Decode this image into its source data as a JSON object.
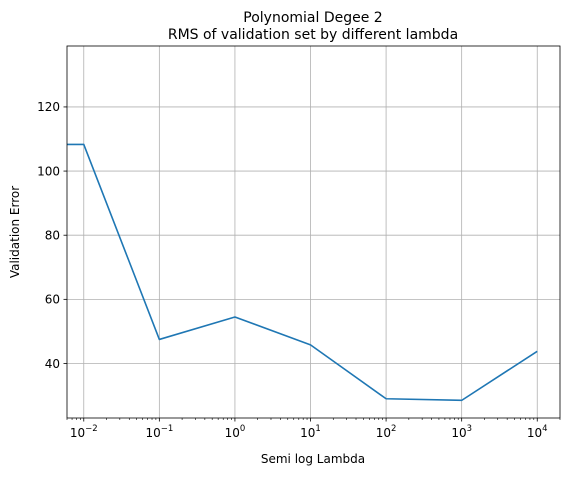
{
  "chart_data": {
    "type": "line",
    "title": "Polynomial Degee 2",
    "subtitle": "RMS of validation set by different lambda",
    "xlabel": "Semi log Lambda",
    "ylabel": "Validation Error",
    "x_scale": "log",
    "xlim": [
      0.006,
      20000
    ],
    "ylim": [
      23,
      139
    ],
    "grid": true,
    "x_ticks": [
      {
        "value": 0.01,
        "base": "10",
        "exp": "−2"
      },
      {
        "value": 0.1,
        "base": "10",
        "exp": "−1"
      },
      {
        "value": 1,
        "base": "10",
        "exp": "0"
      },
      {
        "value": 10,
        "base": "10",
        "exp": "1"
      },
      {
        "value": 100,
        "base": "10",
        "exp": "2"
      },
      {
        "value": 1000,
        "base": "10",
        "exp": "3"
      },
      {
        "value": 10000,
        "base": "10",
        "exp": "4"
      }
    ],
    "y_ticks": [
      40,
      60,
      80,
      100,
      120
    ],
    "series": [
      {
        "color": "#1f77b4",
        "x": [
          0,
          0.01,
          0.1,
          1,
          10,
          100,
          1000,
          10000
        ],
        "y": [
          108.3,
          108.3,
          47.5,
          54.5,
          45.8,
          29.0,
          28.5,
          43.8
        ]
      }
    ]
  }
}
